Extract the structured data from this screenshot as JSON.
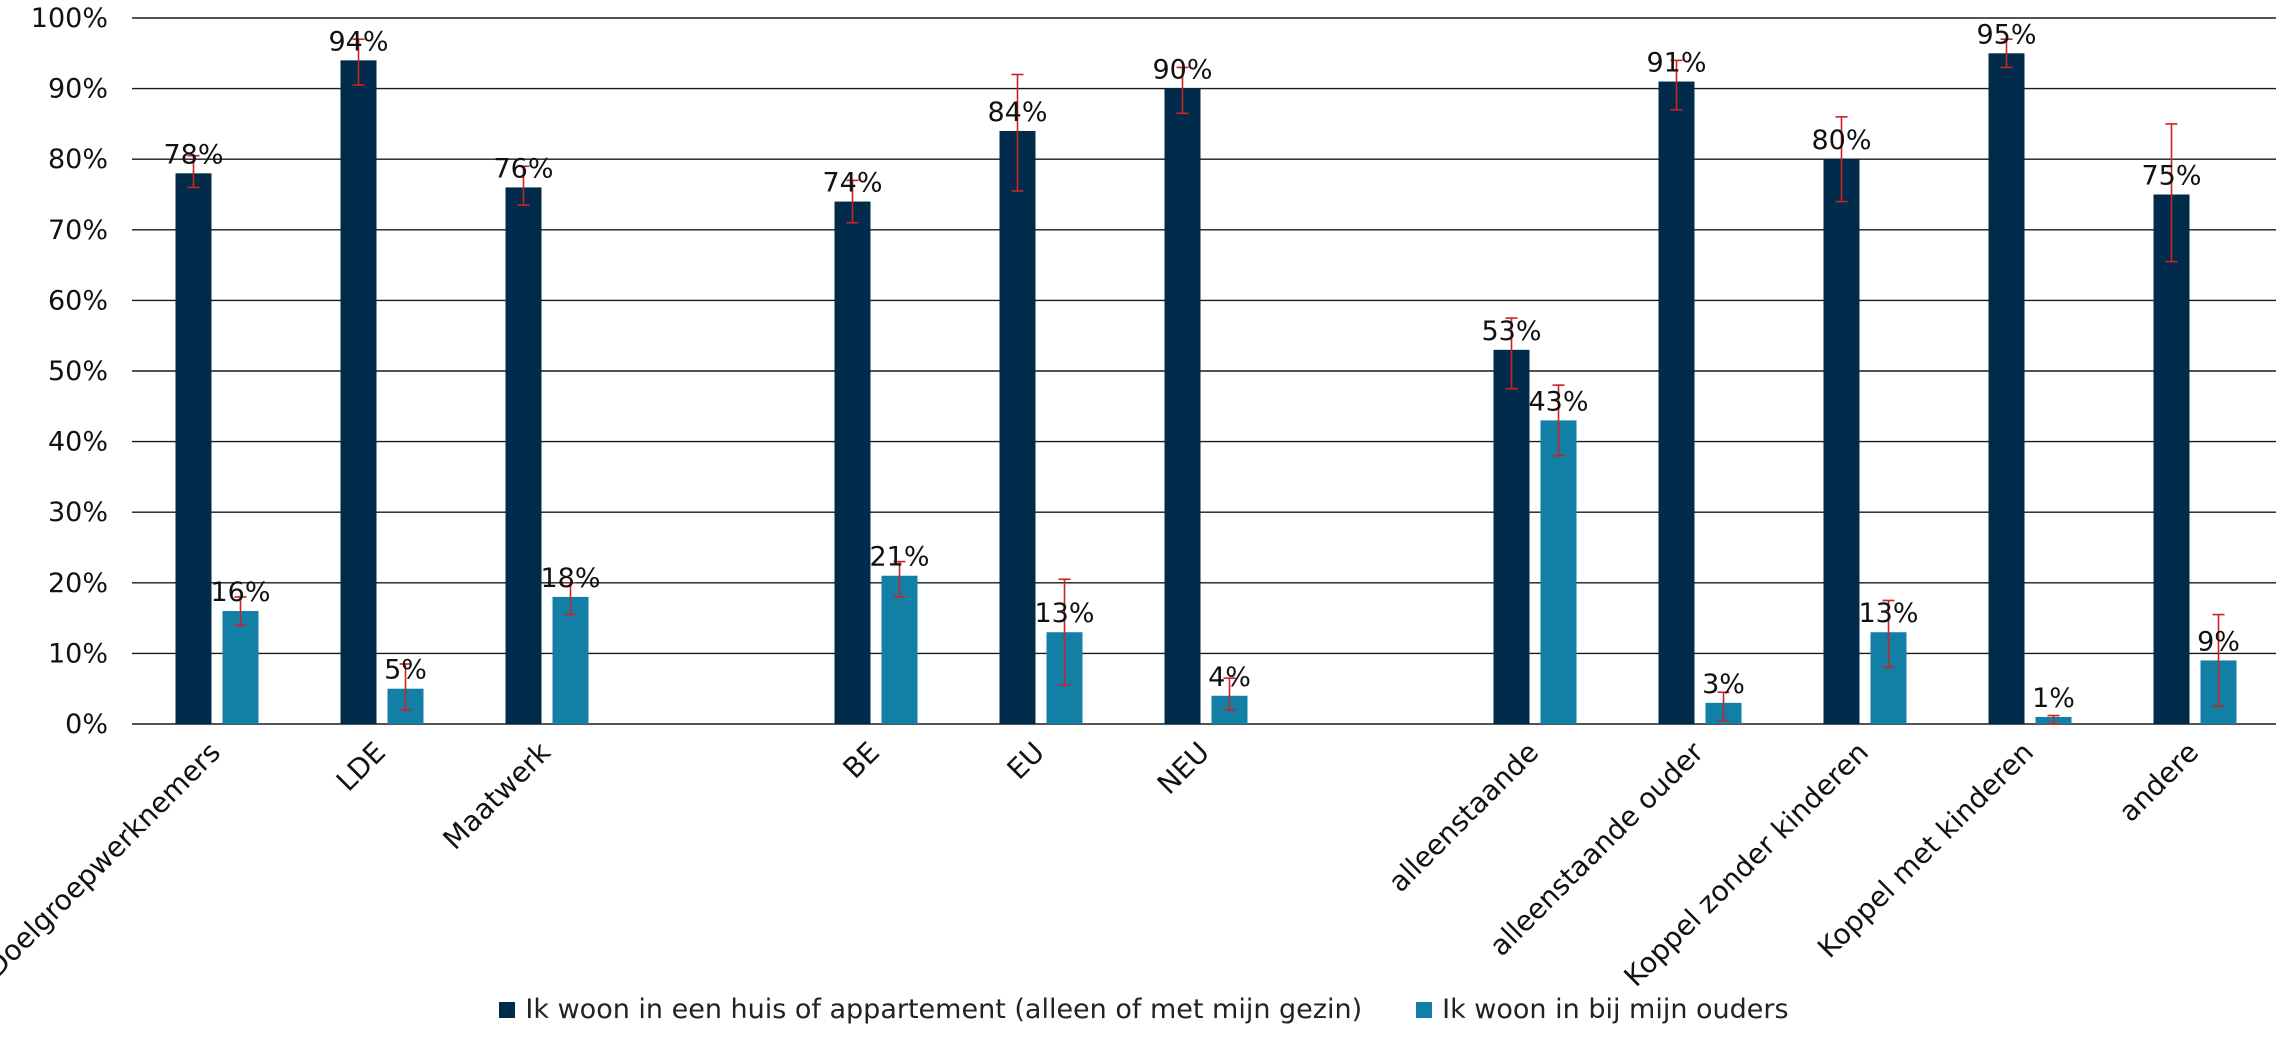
{
  "chart_data": {
    "type": "bar",
    "title": "",
    "xlabel": "",
    "ylabel": "",
    "ylim": [
      0,
      1
    ],
    "y_ticks": [
      "0%",
      "10%",
      "20%",
      "30%",
      "40%",
      "50%",
      "60%",
      "70%",
      "80%",
      "90%",
      "100%"
    ],
    "grid": true,
    "legend_position": "bottom",
    "categories": [
      "Doelgroepwerknemers",
      "LDE",
      "Maatwerk",
      "BE",
      "EU",
      "NEU",
      "alleenstaande",
      "alleenstaande ouder",
      "Koppel zonder kinderen",
      "Koppel met kinderen",
      "andere"
    ],
    "series": [
      {
        "name": "Ik woon in een huis of appartement (alleen of met mijn gezin)",
        "color": "#002b4a",
        "values": [
          0.78,
          0.94,
          0.76,
          0.74,
          0.84,
          0.9,
          0.53,
          0.91,
          0.8,
          0.95,
          0.75
        ],
        "labels": [
          "78%",
          "94%",
          "76%",
          "74%",
          "84%",
          "90%",
          "53%",
          "91%",
          "80%",
          "95%",
          "75%"
        ],
        "error_low": [
          0.76,
          0.905,
          0.735,
          0.71,
          0.755,
          0.865,
          0.475,
          0.87,
          0.74,
          0.93,
          0.655
        ],
        "error_high": [
          0.805,
          0.97,
          0.79,
          0.77,
          0.92,
          0.93,
          0.575,
          0.94,
          0.86,
          0.97,
          0.85
        ]
      },
      {
        "name": "Ik woon in bij mijn ouders",
        "color": "#1280a6",
        "values": [
          0.16,
          0.05,
          0.18,
          0.21,
          0.13,
          0.04,
          0.43,
          0.03,
          0.13,
          0.01,
          0.09
        ],
        "labels": [
          "16%",
          "5%",
          "18%",
          "21%",
          "13%",
          "4%",
          "43%",
          "3%",
          "13%",
          "1%",
          "9%"
        ],
        "error_low": [
          0.14,
          0.02,
          0.155,
          0.18,
          0.055,
          0.02,
          0.38,
          0.005,
          0.08,
          0.0,
          0.025
        ],
        "error_high": [
          0.18,
          0.085,
          0.2,
          0.23,
          0.205,
          0.065,
          0.48,
          0.045,
          0.175,
          0.012,
          0.155
        ]
      }
    ],
    "error_bar_color": "#cc2222"
  }
}
